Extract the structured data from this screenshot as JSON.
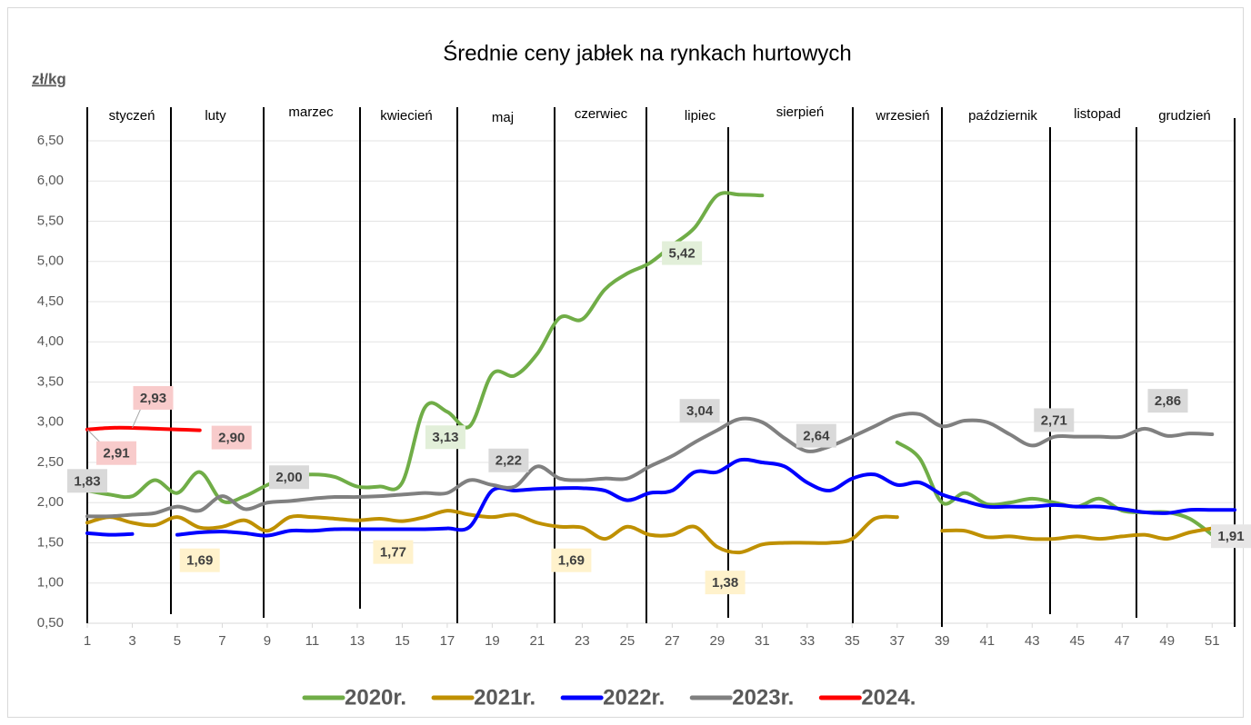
{
  "chart_data": {
    "type": "line",
    "title": "Średnie ceny jabłek na rynkach hurtowych",
    "y_axis_label": "zł/kg",
    "months": [
      "styczeń",
      "luty",
      "marzec",
      "kwiecień",
      "maj",
      "czerwiec",
      "lipiec",
      "sierpień",
      "wrzesień",
      "październik",
      "listopad",
      "grudzień"
    ],
    "x": [
      1,
      2,
      3,
      4,
      5,
      6,
      7,
      8,
      9,
      10,
      11,
      12,
      13,
      14,
      15,
      16,
      17,
      18,
      19,
      20,
      21,
      22,
      23,
      24,
      25,
      26,
      27,
      28,
      29,
      30,
      31,
      32,
      33,
      34,
      35,
      36,
      37,
      38,
      39,
      40,
      41,
      42,
      43,
      44,
      45,
      46,
      47,
      48,
      49,
      50,
      51,
      52
    ],
    "xlim": [
      1,
      52
    ],
    "xticks": [
      1,
      3,
      5,
      7,
      9,
      11,
      13,
      15,
      17,
      19,
      21,
      23,
      25,
      27,
      29,
      31,
      33,
      35,
      37,
      39,
      41,
      43,
      45,
      47,
      49,
      51
    ],
    "ylim": [
      0.5,
      6.5
    ],
    "yticks": [
      {
        "value": 0.5,
        "label": "0,50"
      },
      {
        "value": 1,
        "label": "1,00"
      },
      {
        "value": 1.5,
        "label": "1,50"
      },
      {
        "value": 2,
        "label": "2,00"
      },
      {
        "value": 2.5,
        "label": "2,50"
      },
      {
        "value": 3,
        "label": "3,00"
      },
      {
        "value": 3.5,
        "label": "3,50"
      },
      {
        "value": 4,
        "label": "4,00"
      },
      {
        "value": 4.5,
        "label": "4,50"
      },
      {
        "value": 5,
        "label": "5,00"
      },
      {
        "value": 5.5,
        "label": "5,50"
      },
      {
        "value": 6,
        "label": "6,00"
      },
      {
        "value": 6.5,
        "label": "6,50"
      }
    ],
    "grid": true,
    "legend": "bottom",
    "series": [
      {
        "name": "2020r.",
        "color": "#70ad47",
        "label_fill": "#e2efd9",
        "values": [
          2.15,
          2.1,
          2.08,
          2.28,
          2.12,
          2.38,
          2.02,
          2.08,
          2.22,
          2.32,
          2.35,
          2.32,
          2.2,
          2.2,
          2.25,
          3.18,
          3.13,
          2.95,
          3.6,
          3.58,
          3.85,
          4.3,
          4.28,
          4.65,
          4.85,
          4.98,
          5.2,
          5.42,
          5.82,
          5.83,
          5.82,
          null,
          null,
          null,
          null,
          null,
          2.75,
          2.55,
          2.0,
          2.12,
          1.98,
          2.0,
          2.05,
          2.0,
          1.95,
          2.05,
          1.9,
          1.88,
          1.88,
          1.8,
          1.6,
          null
        ],
        "value_labels": [
          null,
          null,
          null,
          null,
          null,
          null,
          null,
          null,
          null,
          null,
          null,
          null,
          null,
          null,
          null,
          null,
          "3,13",
          null,
          null,
          null,
          null,
          null,
          null,
          null,
          null,
          null,
          null,
          "5,42",
          null,
          null,
          null,
          null,
          null,
          null,
          null,
          null,
          null,
          null,
          null,
          null,
          null,
          null,
          null,
          null,
          null,
          null,
          null,
          null,
          null,
          null,
          null,
          null
        ]
      },
      {
        "name": "2021r.",
        "color": "#bf9000",
        "label_fill": "#fff2cc",
        "values": [
          1.75,
          1.82,
          1.75,
          1.72,
          1.82,
          1.69,
          1.7,
          1.78,
          1.65,
          1.82,
          1.82,
          1.8,
          1.78,
          1.8,
          1.77,
          1.82,
          1.9,
          1.85,
          1.82,
          1.85,
          1.75,
          1.7,
          1.69,
          1.55,
          1.7,
          1.6,
          1.6,
          1.7,
          1.45,
          1.38,
          1.48,
          1.5,
          1.5,
          1.5,
          1.55,
          1.8,
          1.82,
          null,
          1.65,
          1.65,
          1.57,
          1.58,
          1.55,
          1.55,
          1.58,
          1.55,
          1.58,
          1.6,
          1.55,
          1.63,
          1.68,
          null
        ],
        "value_labels": [
          null,
          null,
          null,
          null,
          null,
          "1,69",
          null,
          null,
          null,
          null,
          null,
          null,
          null,
          null,
          "1,77",
          null,
          null,
          null,
          null,
          null,
          null,
          null,
          "1,69",
          null,
          null,
          null,
          null,
          null,
          null,
          "1,38",
          null,
          null,
          null,
          null,
          null,
          null,
          null,
          null,
          null,
          null,
          null,
          null,
          null,
          null,
          null,
          null,
          null,
          null,
          null,
          null,
          null,
          null
        ]
      },
      {
        "name": "2022r.",
        "color": "#0000ff",
        "label_fill": "#e7e6e6",
        "values": [
          1.62,
          1.6,
          1.61,
          null,
          1.6,
          1.63,
          1.64,
          1.62,
          1.59,
          1.65,
          1.65,
          1.67,
          1.67,
          1.67,
          1.67,
          1.67,
          1.68,
          1.7,
          2.15,
          2.15,
          2.17,
          2.18,
          2.18,
          2.15,
          2.03,
          2.12,
          2.15,
          2.38,
          2.38,
          2.53,
          2.5,
          2.45,
          2.25,
          2.15,
          2.3,
          2.35,
          2.22,
          2.25,
          2.1,
          2.02,
          1.95,
          1.95,
          1.95,
          1.97,
          1.95,
          1.95,
          1.92,
          1.88,
          1.87,
          1.91,
          1.91,
          1.91
        ],
        "value_labels": [
          null,
          null,
          null,
          null,
          null,
          null,
          null,
          null,
          null,
          null,
          null,
          null,
          null,
          null,
          null,
          null,
          null,
          null,
          null,
          null,
          null,
          null,
          null,
          null,
          null,
          null,
          null,
          null,
          null,
          null,
          null,
          null,
          null,
          null,
          null,
          null,
          null,
          null,
          null,
          null,
          null,
          null,
          null,
          null,
          null,
          null,
          null,
          null,
          null,
          null,
          null,
          "1,91"
        ]
      },
      {
        "name": "2023r.",
        "color": "#808080",
        "label_fill": "#d9d9d9",
        "values": [
          1.83,
          1.83,
          1.85,
          1.87,
          1.95,
          1.9,
          2.08,
          1.92,
          2.0,
          2.02,
          2.05,
          2.07,
          2.07,
          2.08,
          2.1,
          2.12,
          2.12,
          2.28,
          2.22,
          2.2,
          2.45,
          2.3,
          2.28,
          2.3,
          2.3,
          2.45,
          2.58,
          2.75,
          2.9,
          3.04,
          3.0,
          2.8,
          2.64,
          2.7,
          2.82,
          2.95,
          3.08,
          3.1,
          2.95,
          3.02,
          3.0,
          2.85,
          2.71,
          2.82,
          2.82,
          2.82,
          2.82,
          2.92,
          2.83,
          2.86,
          2.85,
          null
        ],
        "value_labels": [
          "1,83",
          null,
          null,
          null,
          null,
          null,
          null,
          null,
          "2,00",
          null,
          null,
          null,
          null,
          null,
          null,
          null,
          null,
          null,
          "2,22",
          null,
          null,
          null,
          null,
          null,
          null,
          null,
          null,
          null,
          null,
          "3,04",
          null,
          null,
          "2,64",
          null,
          null,
          null,
          null,
          null,
          null,
          null,
          null,
          null,
          "2,71",
          null,
          null,
          null,
          null,
          null,
          null,
          "2,86",
          null,
          null
        ]
      },
      {
        "name": "2024.",
        "color": "#ff0000",
        "label_fill": "#f8cbcb",
        "values": [
          2.91,
          2.93,
          2.93,
          2.92,
          2.91,
          2.9,
          null,
          null,
          null,
          null,
          null,
          null,
          null,
          null,
          null,
          null,
          null,
          null,
          null,
          null,
          null,
          null,
          null,
          null,
          null,
          null,
          null,
          null,
          null,
          null,
          null,
          null,
          null,
          null,
          null,
          null,
          null,
          null,
          null,
          null,
          null,
          null,
          null,
          null,
          null,
          null,
          null,
          null,
          null,
          null,
          null,
          null
        ],
        "value_labels": [
          "2,91",
          null,
          "2,93",
          null,
          null,
          "2,90",
          null,
          null,
          null,
          null,
          null,
          null,
          null,
          null,
          null,
          null,
          null,
          null,
          null,
          null,
          null,
          null,
          null,
          null,
          null,
          null,
          null,
          null,
          null,
          null,
          null,
          null,
          null,
          null,
          null,
          null,
          null,
          null,
          null,
          null,
          null,
          null,
          null,
          null,
          null,
          null,
          null,
          null,
          null,
          null,
          null,
          null
        ]
      }
    ]
  }
}
